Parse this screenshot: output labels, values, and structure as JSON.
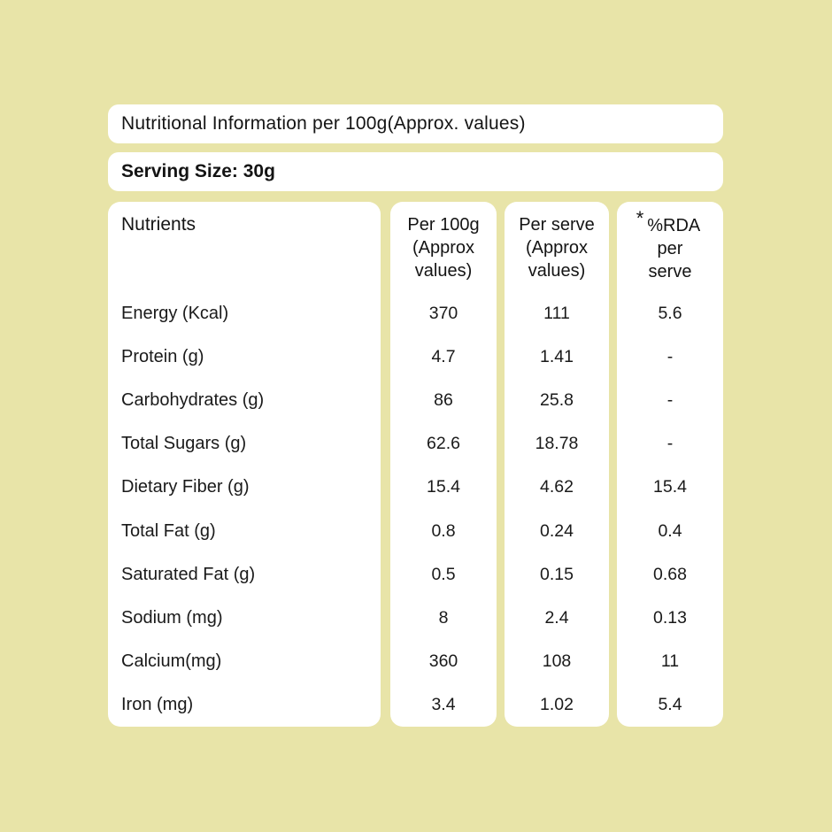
{
  "page": {
    "background_color": "#e8e4a8",
    "panel_color": "#ffffff",
    "text_color": "#141414"
  },
  "title_bar": {
    "text": "Nutritional Information per 100g(Approx. values)"
  },
  "serving_bar": {
    "text": "Serving Size: 30g"
  },
  "table": {
    "nutrients_header": "Nutrients",
    "rda_asterisk": "*",
    "columns": [
      {
        "id": "per_100g",
        "header_lines": [
          "Per 100g",
          "(Approx",
          "values)"
        ]
      },
      {
        "id": "per_serve",
        "header_lines": [
          "Per serve",
          "(Approx",
          "values)"
        ]
      },
      {
        "id": "rda",
        "header_lines": [
          "%RDA",
          "per",
          "serve"
        ]
      }
    ],
    "rows": [
      {
        "nutrient": "Energy (Kcal)",
        "per_100g": "370",
        "per_serve": "111",
        "rda": "5.6"
      },
      {
        "nutrient": "Protein (g)",
        "per_100g": "4.7",
        "per_serve": "1.41",
        "rda": "-"
      },
      {
        "nutrient": "Carbohydrates (g)",
        "per_100g": "86",
        "per_serve": "25.8",
        "rda": "-"
      },
      {
        "nutrient": "Total Sugars (g)",
        "per_100g": "62.6",
        "per_serve": "18.78",
        "rda": "-"
      },
      {
        "nutrient": "Dietary Fiber (g)",
        "per_100g": "15.4",
        "per_serve": "4.62",
        "rda": "15.4"
      },
      {
        "nutrient": "Total Fat (g)",
        "per_100g": "0.8",
        "per_serve": "0.24",
        "rda": "0.4"
      },
      {
        "nutrient": "Saturated Fat (g)",
        "per_100g": "0.5",
        "per_serve": "0.15",
        "rda": "0.68"
      },
      {
        "nutrient": "Sodium (mg)",
        "per_100g": "8",
        "per_serve": "2.4",
        "rda": "0.13"
      },
      {
        "nutrient": "Calcium(mg)",
        "per_100g": "360",
        "per_serve": "108",
        "rda": "11"
      },
      {
        "nutrient": "Iron (mg)",
        "per_100g": "3.4",
        "per_serve": "1.02",
        "rda": "5.4"
      }
    ]
  }
}
